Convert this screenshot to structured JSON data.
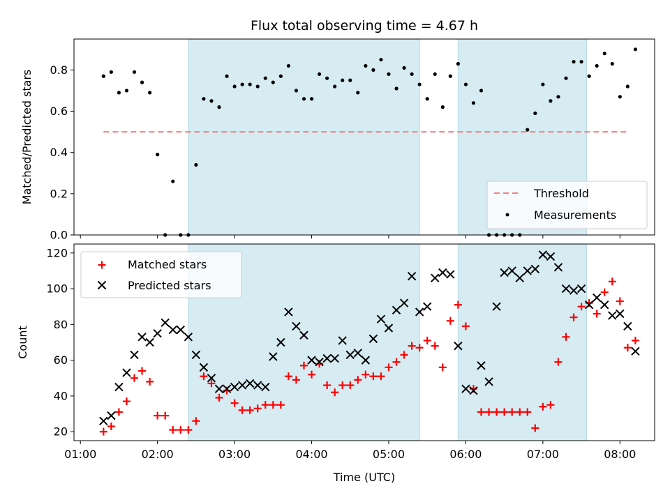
{
  "chart_data": [
    {
      "type": "scatter",
      "title": "Flux total observing time = 4.67 h",
      "xlabel": "",
      "ylabel": "Matched/Predicted stars",
      "xlim": [
        "00:55",
        "08:27"
      ],
      "ylim": [
        0,
        0.95
      ],
      "yticks": [
        0.0,
        0.2,
        0.4,
        0.6,
        0.8
      ],
      "ytick_labels": [
        "0.0",
        "0.2",
        "0.4",
        "0.6",
        "0.8"
      ],
      "shaded_intervals": [
        [
          "02:24",
          "05:24"
        ],
        [
          "05:54",
          "07:34"
        ]
      ],
      "threshold": {
        "name": "Threshold",
        "value": 0.5,
        "x": [
          "01:18",
          "08:06"
        ],
        "color": "#f08080",
        "style": "dashed"
      },
      "series": [
        {
          "name": "Measurements",
          "color": "#000000",
          "marker": "dot",
          "x": [
            "01:18",
            "01:24",
            "01:30",
            "01:36",
            "01:42",
            "01:48",
            "01:54",
            "02:00",
            "02:06",
            "02:12",
            "02:18",
            "02:24",
            "02:30",
            "02:36",
            "02:42",
            "02:48",
            "02:54",
            "03:00",
            "03:06",
            "03:12",
            "03:18",
            "03:24",
            "03:30",
            "03:36",
            "03:42",
            "03:48",
            "03:54",
            "04:00",
            "04:06",
            "04:12",
            "04:18",
            "04:24",
            "04:30",
            "04:36",
            "04:42",
            "04:48",
            "04:54",
            "05:00",
            "05:06",
            "05:12",
            "05:18",
            "05:24",
            "05:30",
            "05:36",
            "05:42",
            "05:48",
            "05:54",
            "06:00",
            "06:06",
            "06:12",
            "06:18",
            "06:24",
            "06:30",
            "06:36",
            "06:42",
            "06:48",
            "06:54",
            "07:00",
            "07:06",
            "07:12",
            "07:18",
            "07:24",
            "07:30",
            "07:36",
            "07:42",
            "07:48",
            "07:54",
            "08:00",
            "08:06",
            "08:12"
          ],
          "y": [
            0.77,
            0.79,
            0.69,
            0.7,
            0.79,
            0.74,
            0.69,
            0.39,
            0.0,
            0.26,
            0.0,
            0.0,
            0.34,
            0.66,
            0.65,
            0.62,
            0.77,
            0.72,
            0.73,
            0.73,
            0.72,
            0.76,
            0.74,
            0.77,
            0.82,
            0.7,
            0.66,
            0.66,
            0.78,
            0.76,
            0.72,
            0.75,
            0.75,
            0.69,
            0.82,
            0.8,
            0.85,
            0.78,
            0.71,
            0.81,
            0.78,
            0.73,
            0.66,
            0.78,
            0.62,
            0.77,
            0.83,
            0.73,
            0.64,
            0.7,
            0.0,
            0.0,
            0.0,
            0.0,
            0.0,
            0.51,
            0.59,
            0.73,
            0.65,
            0.67,
            0.76,
            0.84,
            0.84,
            0.77,
            0.82,
            0.88,
            0.83,
            0.67,
            0.72,
            0.9
          ]
        }
      ],
      "legend": {
        "placement": "lower-right",
        "entries": [
          "Threshold",
          "Measurements"
        ]
      }
    },
    {
      "type": "scatter",
      "title": "",
      "xlabel": "Time (UTC)",
      "ylabel": "Count",
      "xlim": [
        "00:55",
        "08:27"
      ],
      "ylim": [
        15,
        125
      ],
      "yticks": [
        20,
        40,
        60,
        80,
        100,
        120
      ],
      "xticks": [
        "01:00",
        "02:00",
        "03:00",
        "04:00",
        "05:00",
        "06:00",
        "07:00",
        "08:00"
      ],
      "shaded_intervals": [
        [
          "02:24",
          "05:24"
        ],
        [
          "05:54",
          "07:34"
        ]
      ],
      "series": [
        {
          "name": "Matched stars",
          "color": "#ff0000",
          "marker": "plus",
          "x": [
            "01:18",
            "01:24",
            "01:30",
            "01:36",
            "01:42",
            "01:48",
            "01:54",
            "02:00",
            "02:06",
            "02:12",
            "02:18",
            "02:24",
            "02:30",
            "02:36",
            "02:42",
            "02:48",
            "02:54",
            "03:00",
            "03:06",
            "03:12",
            "03:18",
            "03:24",
            "03:30",
            "03:36",
            "03:42",
            "03:48",
            "03:54",
            "04:00",
            "04:06",
            "04:12",
            "04:18",
            "04:24",
            "04:30",
            "04:36",
            "04:42",
            "04:48",
            "04:54",
            "05:00",
            "05:06",
            "05:12",
            "05:18",
            "05:24",
            "05:30",
            "05:36",
            "05:42",
            "05:48",
            "05:54",
            "06:00",
            "06:06",
            "06:12",
            "06:18",
            "06:24",
            "06:30",
            "06:36",
            "06:42",
            "06:48",
            "06:54",
            "07:00",
            "07:06",
            "07:12",
            "07:18",
            "07:24",
            "07:30",
            "07:36",
            "07:42",
            "07:48",
            "07:54",
            "08:00",
            "08:06",
            "08:12"
          ],
          "y": [
            20,
            23,
            31,
            37,
            50,
            54,
            48,
            29,
            29,
            21,
            21,
            21,
            26,
            51,
            47,
            39,
            43,
            36,
            32,
            32,
            33,
            35,
            35,
            35,
            51,
            49,
            57,
            52,
            58,
            46,
            42,
            46,
            46,
            49,
            52,
            51,
            51,
            56,
            59,
            63,
            68,
            67,
            71,
            68,
            56,
            82,
            91,
            79,
            44,
            31,
            31,
            31,
            31,
            31,
            31,
            31,
            22,
            34,
            35,
            59,
            73,
            84,
            90,
            92,
            86,
            98,
            104,
            93,
            67,
            71
          ]
        },
        {
          "name": "Predicted stars",
          "color": "#000000",
          "marker": "cross",
          "x": [
            "01:18",
            "01:24",
            "01:30",
            "01:36",
            "01:42",
            "01:48",
            "01:54",
            "02:00",
            "02:06",
            "02:12",
            "02:18",
            "02:24",
            "02:30",
            "02:36",
            "02:42",
            "02:48",
            "02:54",
            "03:00",
            "03:06",
            "03:12",
            "03:18",
            "03:24",
            "03:30",
            "03:36",
            "03:42",
            "03:48",
            "03:54",
            "04:00",
            "04:06",
            "04:12",
            "04:18",
            "04:24",
            "04:30",
            "04:36",
            "04:42",
            "04:48",
            "04:54",
            "05:00",
            "05:06",
            "05:12",
            "05:18",
            "05:24",
            "05:30",
            "05:36",
            "05:42",
            "05:48",
            "05:54",
            "06:00",
            "06:06",
            "06:12",
            "06:18",
            "06:24",
            "06:30",
            "06:36",
            "06:42",
            "06:48",
            "06:54",
            "07:00",
            "07:06",
            "07:12",
            "07:18",
            "07:24",
            "07:30",
            "07:36",
            "07:42",
            "07:48",
            "07:54",
            "08:00",
            "08:06",
            "08:12"
          ],
          "y": [
            26,
            29,
            45,
            53,
            63,
            73,
            70,
            75,
            81,
            77,
            77,
            73,
            63,
            56,
            50,
            44,
            44,
            45,
            46,
            47,
            46,
            45,
            62,
            70,
            87,
            79,
            74,
            60,
            59,
            61,
            61,
            71,
            63,
            64,
            60,
            72,
            83,
            78,
            88,
            92,
            107,
            87,
            90,
            106,
            109,
            108,
            68,
            44,
            43,
            57,
            48,
            90,
            109,
            110,
            106,
            110,
            111,
            119,
            118,
            112,
            100,
            99,
            100,
            91,
            95,
            91,
            85,
            86,
            79,
            65
          ]
        }
      ],
      "legend": {
        "placement": "upper-left",
        "entries": [
          "Matched stars",
          "Predicted stars"
        ]
      }
    }
  ]
}
